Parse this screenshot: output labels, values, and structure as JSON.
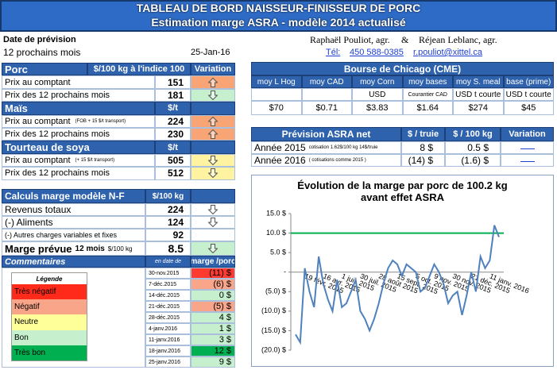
{
  "header": {
    "title": "TABLEAU DE BORD NAISSEUR-FINISSEUR DE PORC",
    "subtitle": "Estimation marge ASRA - modèle 2014 actualisé"
  },
  "info": {
    "date_label": "Date de prévision",
    "period": "12 prochains mois",
    "date": "25-Jan-16",
    "author1": "Raphaël Pouliot, agr.",
    "amp": "&",
    "author2": "Réjean Leblanc, agr.",
    "tel_label": "Tél:",
    "tel": "450 588-0385",
    "email": "r.pouliot@xittel.ca"
  },
  "prices": {
    "sections": [
      {
        "name": "Porc",
        "unit": "$/100 kg à l'indice 100",
        "variation": "Variation",
        "rows": [
          {
            "label": "Prix au comptant",
            "value": 151,
            "arrow": "up",
            "color": "#f9a474"
          },
          {
            "label": "Prix des 12 prochains mois",
            "value": 181,
            "arrow": "down",
            "color": "#c6efce"
          }
        ]
      },
      {
        "name": "Maïs",
        "unit": "$/t",
        "rows": [
          {
            "label": "Prix au comptant",
            "note": "(FOB + 15 $/t transport)",
            "value": 224,
            "arrow": "up",
            "color": "#f9a474"
          },
          {
            "label": "Prix des 12 prochains mois",
            "value": 230,
            "arrow": "up",
            "color": "#f9a474"
          }
        ]
      },
      {
        "name": "Tourteau de soya",
        "unit": "$/t",
        "rows": [
          {
            "label": "Prix au comptant",
            "note": "(+ 15 $/t transport)",
            "value": 505,
            "arrow": "down",
            "color": "#fff2a0"
          },
          {
            "label": "Prix des 12 prochains mois",
            "value": 512,
            "arrow": "down",
            "color": "#fff2a0"
          }
        ]
      }
    ]
  },
  "chicago": {
    "title": "Bourse de Chicago (CME)",
    "columns": [
      "moy L Hog",
      "moy CAD",
      "moy Corn",
      "moy bases",
      "moy S. meal",
      "base (prime)"
    ],
    "units": [
      null,
      null,
      "USD",
      "Courantier CAD",
      "USD t courte",
      "USD t courte"
    ],
    "values": [
      "$70",
      "$0.71",
      "$3.83",
      "$1.64",
      "$274",
      "$45"
    ]
  },
  "asra": {
    "title": "Prévision ASRA net",
    "columns": [
      "$ / truie",
      "$ / 100 kg",
      "Variation"
    ],
    "rows": [
      {
        "label": "Année 2015",
        "note": "cotisation 1.62$/100 kg 14$/truie",
        "values": [
          "8 $",
          "0.5 $"
        ]
      },
      {
        "label": "Année 2016",
        "note": "( cotisations comme 2015 )",
        "values": [
          "(14) $",
          "(1.6) $"
        ]
      }
    ]
  },
  "calc": {
    "title": "Calculs marge  modèle N-F",
    "unit": "$/100 kg",
    "rows": [
      {
        "label": "Revenus totaux",
        "value": 224,
        "arrow": "down"
      },
      {
        "label": "(-) Aliments",
        "value": 124,
        "arrow": "down"
      },
      {
        "label": "(-) Autres charges variables et fixes",
        "value": 92
      }
    ],
    "margin": {
      "label": "Marge prévue",
      "period": "12 mois",
      "unit": "$/100 kg",
      "value": 8.5,
      "arrow": "down",
      "color": "#c6efce"
    }
  },
  "comments": {
    "title": "Commentaires",
    "date_header": "en date de",
    "value_header": "marge /porc",
    "rows": [
      {
        "date": "30-nov.2015",
        "value": "(11) $",
        "color": "#ff3b2f"
      },
      {
        "date": "7-déc.2015",
        "value": "(6) $",
        "color": "#f9a58a"
      },
      {
        "date": "14-déc.2015",
        "value": "0 $",
        "color": "#c6efce"
      },
      {
        "date": "21-déc.2015",
        "value": "(5) $",
        "color": "#f9a58a"
      },
      {
        "date": "28-déc.2015",
        "value": "4 $",
        "color": "#c6efce"
      },
      {
        "date": "4-janv.2016",
        "value": "1 $",
        "color": "#c6efce"
      },
      {
        "date": "11-janv.2016",
        "value": "3 $",
        "color": "#c6efce"
      },
      {
        "date": "18-janv.2016",
        "value": "12 $",
        "color": "#00b050"
      },
      {
        "date": "25-janv.2016",
        "value": "9 $",
        "color": "#c6efce"
      }
    ]
  },
  "legend": {
    "title": "Légende",
    "items": [
      {
        "label": "Très négatif",
        "color": "#ff2a1a"
      },
      {
        "label": "Négatif",
        "color": "#f9a58a"
      },
      {
        "label": "Neutre",
        "color": "#ffff99"
      },
      {
        "label": "Bon",
        "color": "#c6efce"
      },
      {
        "label": "Très bon",
        "color": "#00b050"
      }
    ]
  },
  "chart_data": {
    "type": "line",
    "title": "Évolution de la marge par porc de 100.2 kg avant effet ASRA",
    "categories": [
      null,
      null,
      "19 févr. 2015",
      null,
      null,
      null,
      "16 avr. 2015",
      null,
      null,
      null,
      "1 juil. 2015",
      null,
      null,
      null,
      "30 juil. 2015",
      null,
      null,
      null,
      "28 août 2015",
      null,
      null,
      null,
      "15 sept. 2015",
      null,
      null,
      null,
      "5 oct. 2015",
      null,
      null,
      null,
      "9 nov. 2015",
      null,
      null,
      null,
      "30 nov. 2015",
      null,
      null,
      null,
      "21 déc. 2015",
      null,
      null,
      null,
      "11 janv. 2016",
      null,
      null
    ],
    "series": [
      {
        "color": "#4f81bd",
        "values": [
          -16,
          -18,
          1,
          -5,
          -9,
          4,
          -3,
          -7,
          -10,
          -2,
          -9,
          -8,
          -5,
          -2,
          -10,
          -12,
          -15,
          -12,
          -8,
          -3,
          1,
          3,
          2,
          -1,
          2,
          1,
          0,
          -5,
          -4,
          -1,
          2,
          0,
          -3,
          -8,
          -6,
          -5,
          -11,
          -6,
          0,
          -5,
          4,
          1,
          3,
          12,
          9
        ]
      }
    ],
    "reference_line": {
      "value": 10,
      "color": "#00b050"
    },
    "ylim": [
      -20,
      15
    ],
    "yticks": [
      {
        "value": 15,
        "label": "15.0 $"
      },
      {
        "value": 10,
        "label": "10.0 $"
      },
      {
        "value": 5,
        "label": "5.0 $"
      },
      {
        "value": 0,
        "label": "-"
      },
      {
        "value": -5,
        "label": "(5.0) $"
      },
      {
        "value": -10,
        "label": "(10.0) $"
      },
      {
        "value": -15,
        "label": "(15.0) $"
      },
      {
        "value": -20,
        "label": "(20.0) $"
      }
    ]
  }
}
